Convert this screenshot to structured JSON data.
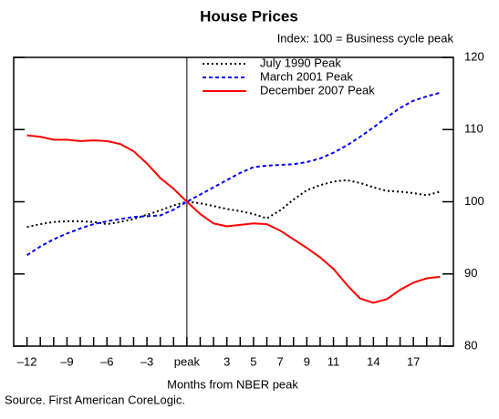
{
  "chart_data": {
    "type": "line",
    "title": "House Prices",
    "subtitle": "Index: 100 = Business cycle peak",
    "x_label": "Months from NBER peak",
    "source": "Source. First American CoreLogic.",
    "x": [
      -12,
      -11,
      -10,
      -9,
      -8,
      -7,
      -6,
      -5,
      -4,
      -3,
      -2,
      -1,
      0,
      1,
      2,
      3,
      4,
      5,
      6,
      7,
      8,
      9,
      10,
      11,
      12,
      13,
      14,
      15,
      16,
      17,
      18,
      19
    ],
    "series": [
      {
        "name": "July 1990 Peak",
        "color": "#000000",
        "dash": "2,3",
        "values": [
          96.5,
          96.9,
          97.2,
          97.3,
          97.3,
          97.2,
          96.9,
          97.2,
          97.6,
          98.2,
          98.8,
          99.5,
          100,
          99.8,
          99.4,
          99.0,
          98.7,
          98.3,
          97.7,
          98.8,
          100.3,
          101.6,
          102.3,
          102.8,
          103.0,
          102.6,
          102.0,
          101.5,
          101.4,
          101.2,
          100.9,
          101.4
        ]
      },
      {
        "name": "March 2001 Peak",
        "color": "#0000ff",
        "dash": "4,3",
        "values": [
          92.6,
          93.8,
          94.8,
          95.6,
          96.3,
          96.9,
          97.3,
          97.6,
          97.9,
          98.0,
          98.1,
          98.9,
          100,
          101.0,
          102.0,
          103.0,
          104.0,
          104.8,
          105.0,
          105.1,
          105.2,
          105.5,
          106.0,
          106.8,
          107.8,
          109.0,
          110.3,
          111.7,
          113.0,
          114.0,
          114.6,
          115.1
        ]
      },
      {
        "name": "December 2007 Peak",
        "color": "#ff0000",
        "dash": "none",
        "values": [
          109.2,
          109.0,
          108.6,
          108.6,
          108.4,
          108.5,
          108.4,
          108.0,
          107.0,
          105.3,
          103.3,
          101.8,
          100,
          98.3,
          97.0,
          96.6,
          96.8,
          97.0,
          96.9,
          96.0,
          94.8,
          93.6,
          92.3,
          90.7,
          88.5,
          86.6,
          86.0,
          86.5,
          87.8,
          88.8,
          89.4,
          89.6
        ]
      }
    ],
    "xlim": [
      -13,
      20
    ],
    "xticks": [
      {
        "value": -12,
        "label": "–12"
      },
      {
        "value": -9,
        "label": "–9"
      },
      {
        "value": -6,
        "label": "–6"
      },
      {
        "value": -3,
        "label": "–3"
      },
      {
        "value": 0,
        "label": "peak"
      },
      3,
      5,
      7,
      9,
      11,
      14,
      17
    ],
    "xminorticks": [
      -12,
      -11,
      -10,
      -9,
      -8,
      -7,
      -6,
      -5,
      -4,
      -3,
      -2,
      -1,
      0,
      1,
      2,
      3,
      4,
      5,
      6,
      7,
      8,
      9,
      10,
      11,
      12,
      13,
      14,
      15,
      16,
      17,
      18,
      19
    ],
    "vline": 0,
    "ylim": [
      80,
      120
    ],
    "yticks": [
      80,
      90,
      100,
      110,
      120
    ]
  }
}
